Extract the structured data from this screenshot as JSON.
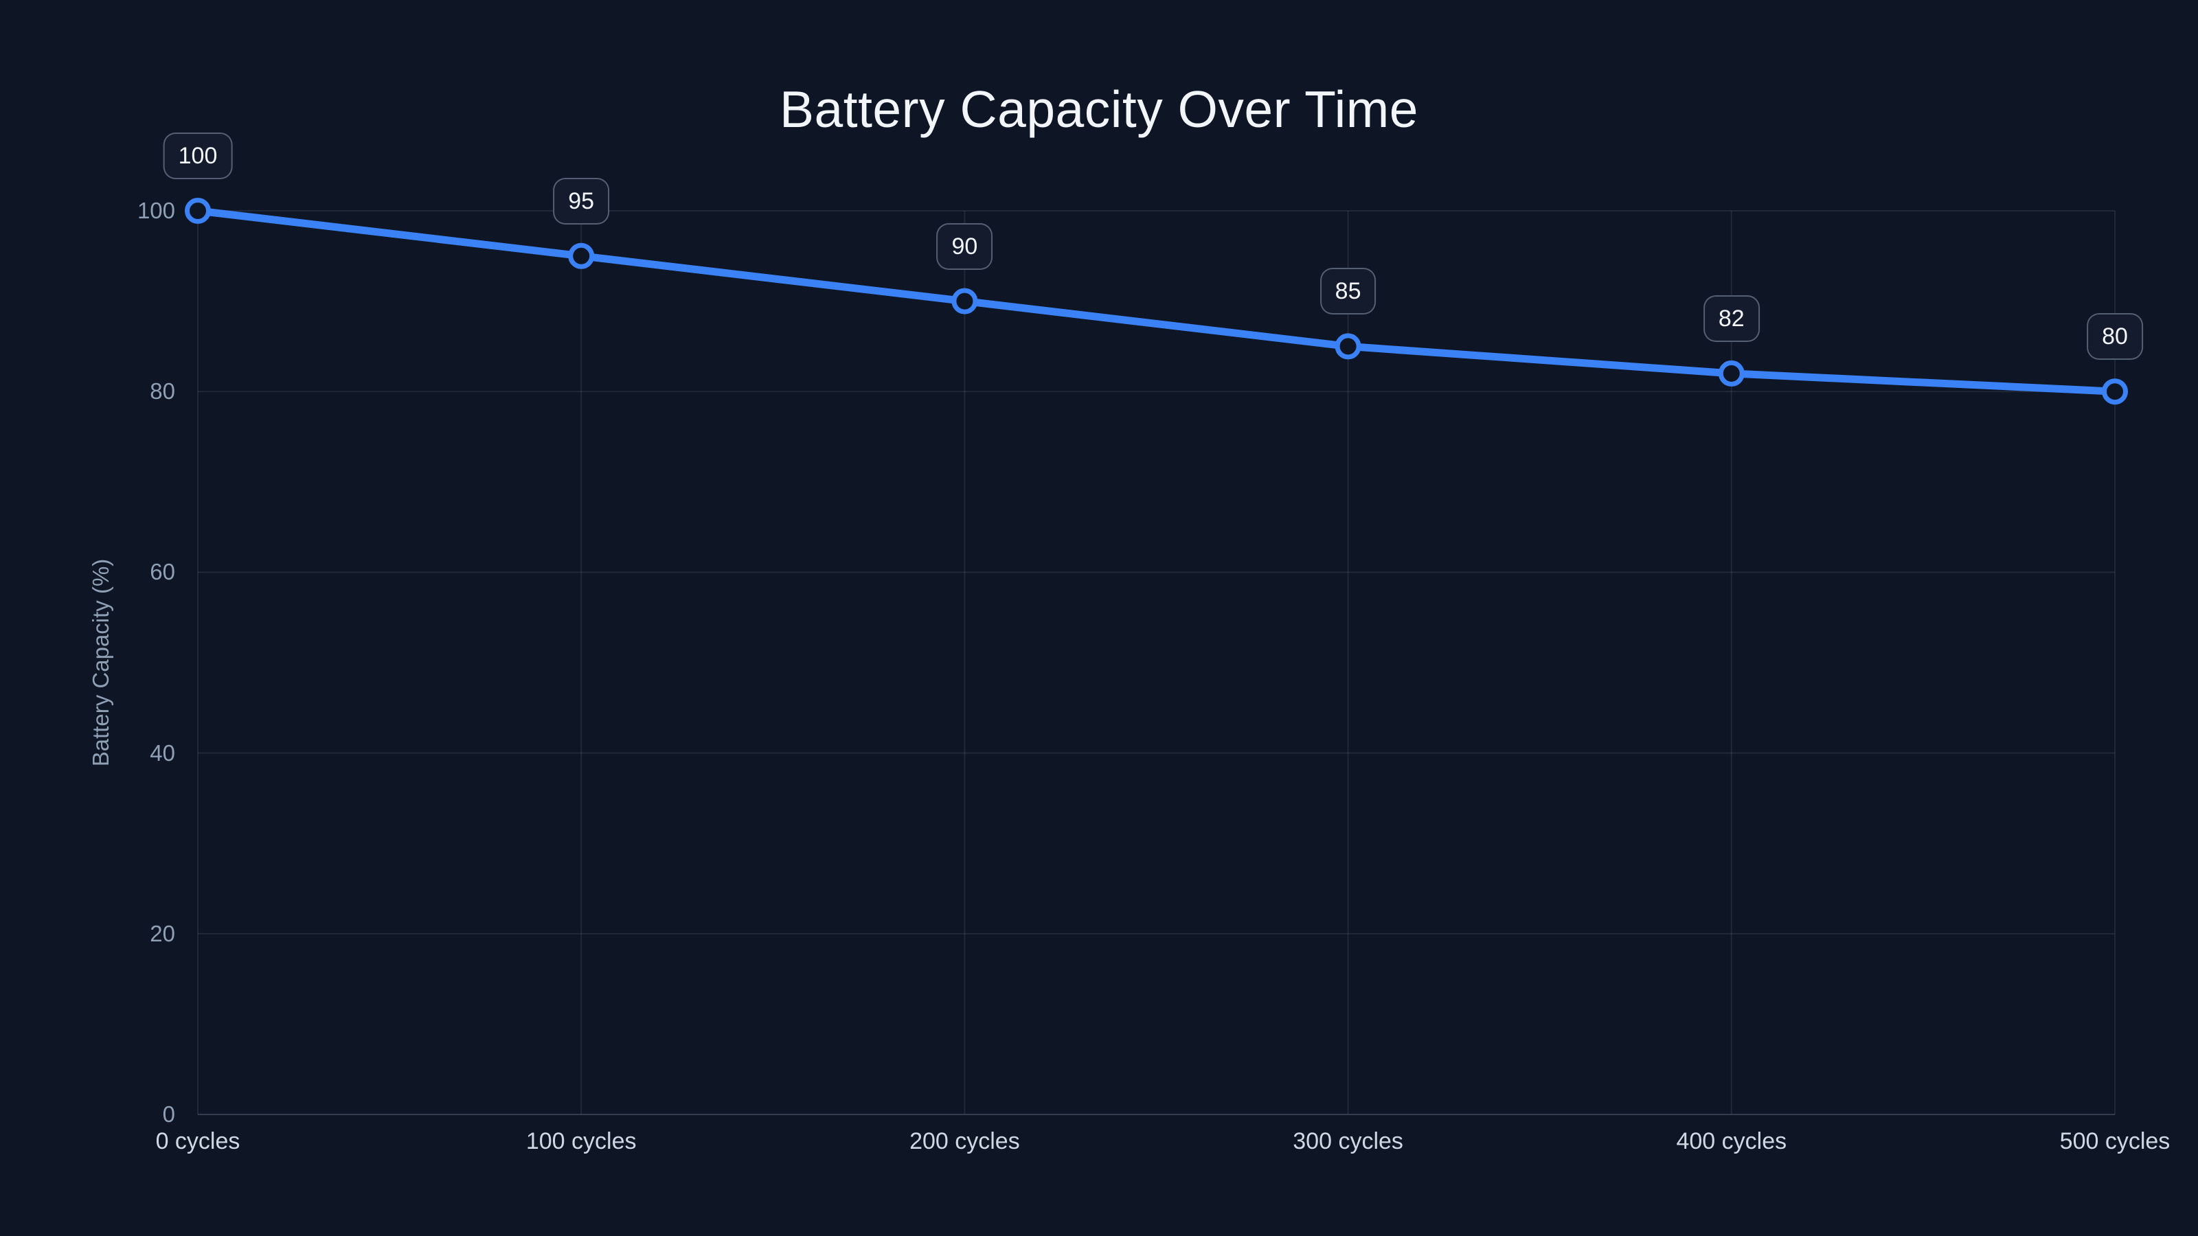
{
  "header": {
    "title": "Battery Capacity Over Time"
  },
  "chart_data": {
    "type": "line",
    "title": "Battery Capacity Over Time",
    "categories": [
      "0 cycles",
      "100 cycles",
      "200 cycles",
      "300 cycles",
      "400 cycles",
      "500 cycles"
    ],
    "values": [
      100,
      95,
      90,
      85,
      82,
      80
    ],
    "point_labels": [
      "100",
      "95",
      "90",
      "85",
      "82",
      "80"
    ],
    "xlabel": "",
    "ylabel": "Battery Capacity (%)",
    "ylim": [
      0,
      100
    ],
    "yticks": [
      0,
      20,
      40,
      60,
      80,
      100
    ],
    "ytick_labels": [
      "0",
      "20",
      "40",
      "60",
      "80",
      "100"
    ],
    "grid": true,
    "legend": false,
    "colors": {
      "accent": "#3b82f6",
      "background": "#0e1525",
      "grid": "rgba(148,163,184,0.14)",
      "axis": "rgba(148,163,184,0.28)",
      "title_text": "#f2f6fb",
      "y_tick_text": "#8fa0b5",
      "x_tick_text": "#cfd8e3",
      "label_text": "#f2f6fb",
      "label_box_bg": "#141b2c",
      "label_box_border": "rgba(148,163,184,0.5)"
    }
  }
}
